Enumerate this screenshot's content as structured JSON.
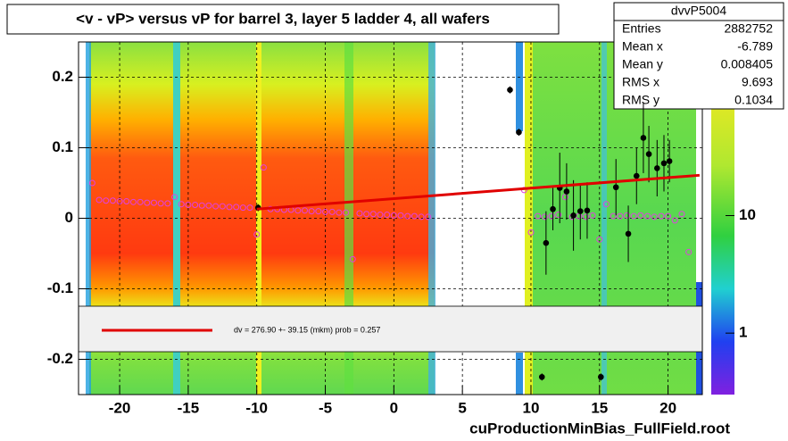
{
  "chart_data": {
    "type": "profile",
    "title": "<v - vP>       versus   vP for barrel 3, layer 5 ladder 4, all wafers",
    "footer": "cuProductionMinBias_FullField.root",
    "xlim": [
      -23,
      22.5
    ],
    "ylim": [
      -0.25,
      0.25
    ],
    "xticks": [
      -20,
      -15,
      -10,
      -5,
      0,
      5,
      10,
      15,
      20
    ],
    "yticks": [
      -0.2,
      -0.1,
      0,
      0.1,
      0.2
    ],
    "grid": true,
    "zscale": "log",
    "zlim": [
      0.3,
      300
    ],
    "zticks": [
      1,
      10
    ],
    "series": [
      {
        "name": "profile-open",
        "color": "#e040e0",
        "x": [
          -22,
          -21.5,
          -21,
          -20.5,
          -20,
          -19.5,
          -19,
          -18.5,
          -18,
          -17.5,
          -17,
          -16.5,
          -16,
          -15.5,
          -15,
          -14.5,
          -14,
          -13.5,
          -13,
          -12.5,
          -12,
          -11.5,
          -11,
          -10.5,
          -10,
          -9.5,
          -9,
          -8.5,
          -8,
          -7.5,
          -7,
          -6.5,
          -6,
          -5.5,
          -5,
          -4.5,
          -4,
          -3.5,
          -3,
          -2.5,
          -2,
          -1.5,
          -1,
          -0.5,
          0,
          0.5,
          1,
          1.5,
          2,
          2.5,
          9.5,
          10,
          10.5,
          11,
          11.5,
          12,
          12.5,
          13,
          13.5,
          14,
          14.5,
          15,
          15.5,
          16,
          16.5,
          17,
          17.5,
          18,
          18.5,
          19,
          19.5,
          20,
          20.5,
          21,
          21.5
        ],
        "values": [
          0.05,
          0.026,
          0.025,
          0.025,
          0.024,
          0.024,
          0.023,
          0.023,
          0.022,
          0.022,
          0.021,
          0.021,
          0.03,
          0.02,
          0.019,
          0.019,
          0.018,
          0.018,
          0.017,
          0.017,
          0.016,
          0.016,
          0.015,
          0.015,
          -0.023,
          0.072,
          0.013,
          0.013,
          0.012,
          0.012,
          0.011,
          0.011,
          0.01,
          0.01,
          0.009,
          0.009,
          0.008,
          0.008,
          -0.058,
          0.007,
          0.006,
          0.006,
          0.005,
          0.005,
          0.004,
          0.004,
          0.003,
          0.003,
          0.002,
          0.002,
          0.04,
          -0.02,
          0.003,
          0.002,
          0.003,
          0.005,
          0.03,
          0.002,
          0.003,
          0.002,
          0.004,
          -0.03,
          0.02,
          0.003,
          0.003,
          0.004,
          0.003,
          0.004,
          0.003,
          0.002,
          0.003,
          0.003,
          -0.003,
          0.006,
          -0.048
        ]
      },
      {
        "name": "profile-filled",
        "color": "#000000",
        "x": [
          -9.9,
          8.47,
          9.12,
          10.8,
          11.1,
          11.6,
          12.1,
          12.6,
          13.1,
          13.6,
          14.1,
          15.1,
          16.2,
          17.1,
          17.7,
          18.2,
          18.6,
          19.2,
          19.7,
          20.1
        ],
        "values": [
          0.015,
          0.182,
          0.122,
          -0.225,
          -0.035,
          0.013,
          0.043,
          0.038,
          0.004,
          0.01,
          0.011,
          -0.225,
          0.044,
          -0.022,
          0.06,
          0.114,
          0.091,
          0.071,
          0.078,
          0.081
        ],
        "errors": [
          0.005,
          0.005,
          0.005,
          0.005,
          0.045,
          0.03,
          0.05,
          0.04,
          0.05,
          0.04,
          0.04,
          0.005,
          0.04,
          0.04,
          0.04,
          0.05,
          0.04,
          0.04,
          0.04,
          0.03
        ]
      },
      {
        "name": "fit",
        "color": "#e00000",
        "x": [
          -10,
          22.3
        ],
        "values": [
          0.013,
          0.061
        ]
      }
    ],
    "legend": "dv =  276.90 +- 39.15 (mkm) prob = 0.257",
    "stats": {
      "title": "dvvP5004",
      "rows": [
        [
          "Entries",
          2882752
        ],
        [
          "Mean x",
          -6.789
        ],
        [
          "Mean y",
          0.008405
        ],
        [
          "RMS x",
          9.693
        ],
        [
          "RMS y",
          0.1034
        ]
      ]
    }
  }
}
